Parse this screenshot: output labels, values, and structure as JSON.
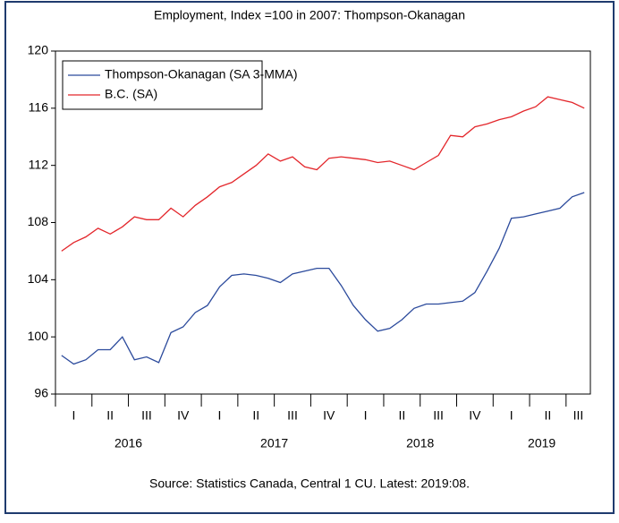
{
  "chart_data": {
    "type": "line",
    "title": "Employment, Index =100 in 2007: Thompson-Okanagan",
    "source": "Source: Statistics Canada, Central 1 CU. Latest: 2019:08.",
    "x_quarter_labels": [
      "I",
      "II",
      "III",
      "IV",
      "I",
      "II",
      "III",
      "IV",
      "I",
      "II",
      "III",
      "IV",
      "I",
      "II",
      "III"
    ],
    "x_year_labels": [
      "2016",
      "2017",
      "2018",
      "2019"
    ],
    "ylim": [
      96,
      120
    ],
    "yticks": [
      96,
      100,
      104,
      108,
      112,
      116,
      120
    ],
    "grid": false,
    "legend": "top-left",
    "series": [
      {
        "name": "Thompson-Okanagan (SA 3-MMA)",
        "color": "#2b4a9c",
        "values": [
          98.7,
          98.1,
          98.4,
          99.1,
          99.1,
          100.0,
          98.4,
          98.6,
          98.2,
          100.3,
          100.7,
          101.7,
          102.2,
          103.5,
          104.3,
          104.4,
          104.3,
          104.1,
          103.8,
          104.4,
          104.6,
          104.8,
          104.8,
          103.6,
          102.2,
          101.2,
          100.4,
          100.6,
          101.2,
          102.0,
          102.3,
          102.3,
          102.4,
          102.5,
          103.1,
          104.6,
          106.2,
          108.3,
          108.4,
          108.6,
          108.8,
          109.0,
          109.8,
          110.1
        ]
      },
      {
        "name": "B.C. (SA)",
        "color": "#e3262b",
        "values": [
          106.0,
          106.6,
          107.0,
          107.6,
          107.2,
          107.7,
          108.4,
          108.2,
          108.2,
          109.0,
          108.4,
          109.2,
          109.8,
          110.5,
          110.8,
          111.4,
          112.0,
          112.8,
          112.3,
          112.6,
          111.9,
          111.7,
          112.5,
          112.6,
          112.5,
          112.4,
          112.2,
          112.3,
          112.0,
          111.7,
          112.2,
          112.7,
          114.1,
          114.0,
          114.7,
          114.9,
          115.2,
          115.4,
          115.8,
          116.1,
          116.8,
          116.6,
          116.4,
          116.0
        ]
      }
    ]
  }
}
